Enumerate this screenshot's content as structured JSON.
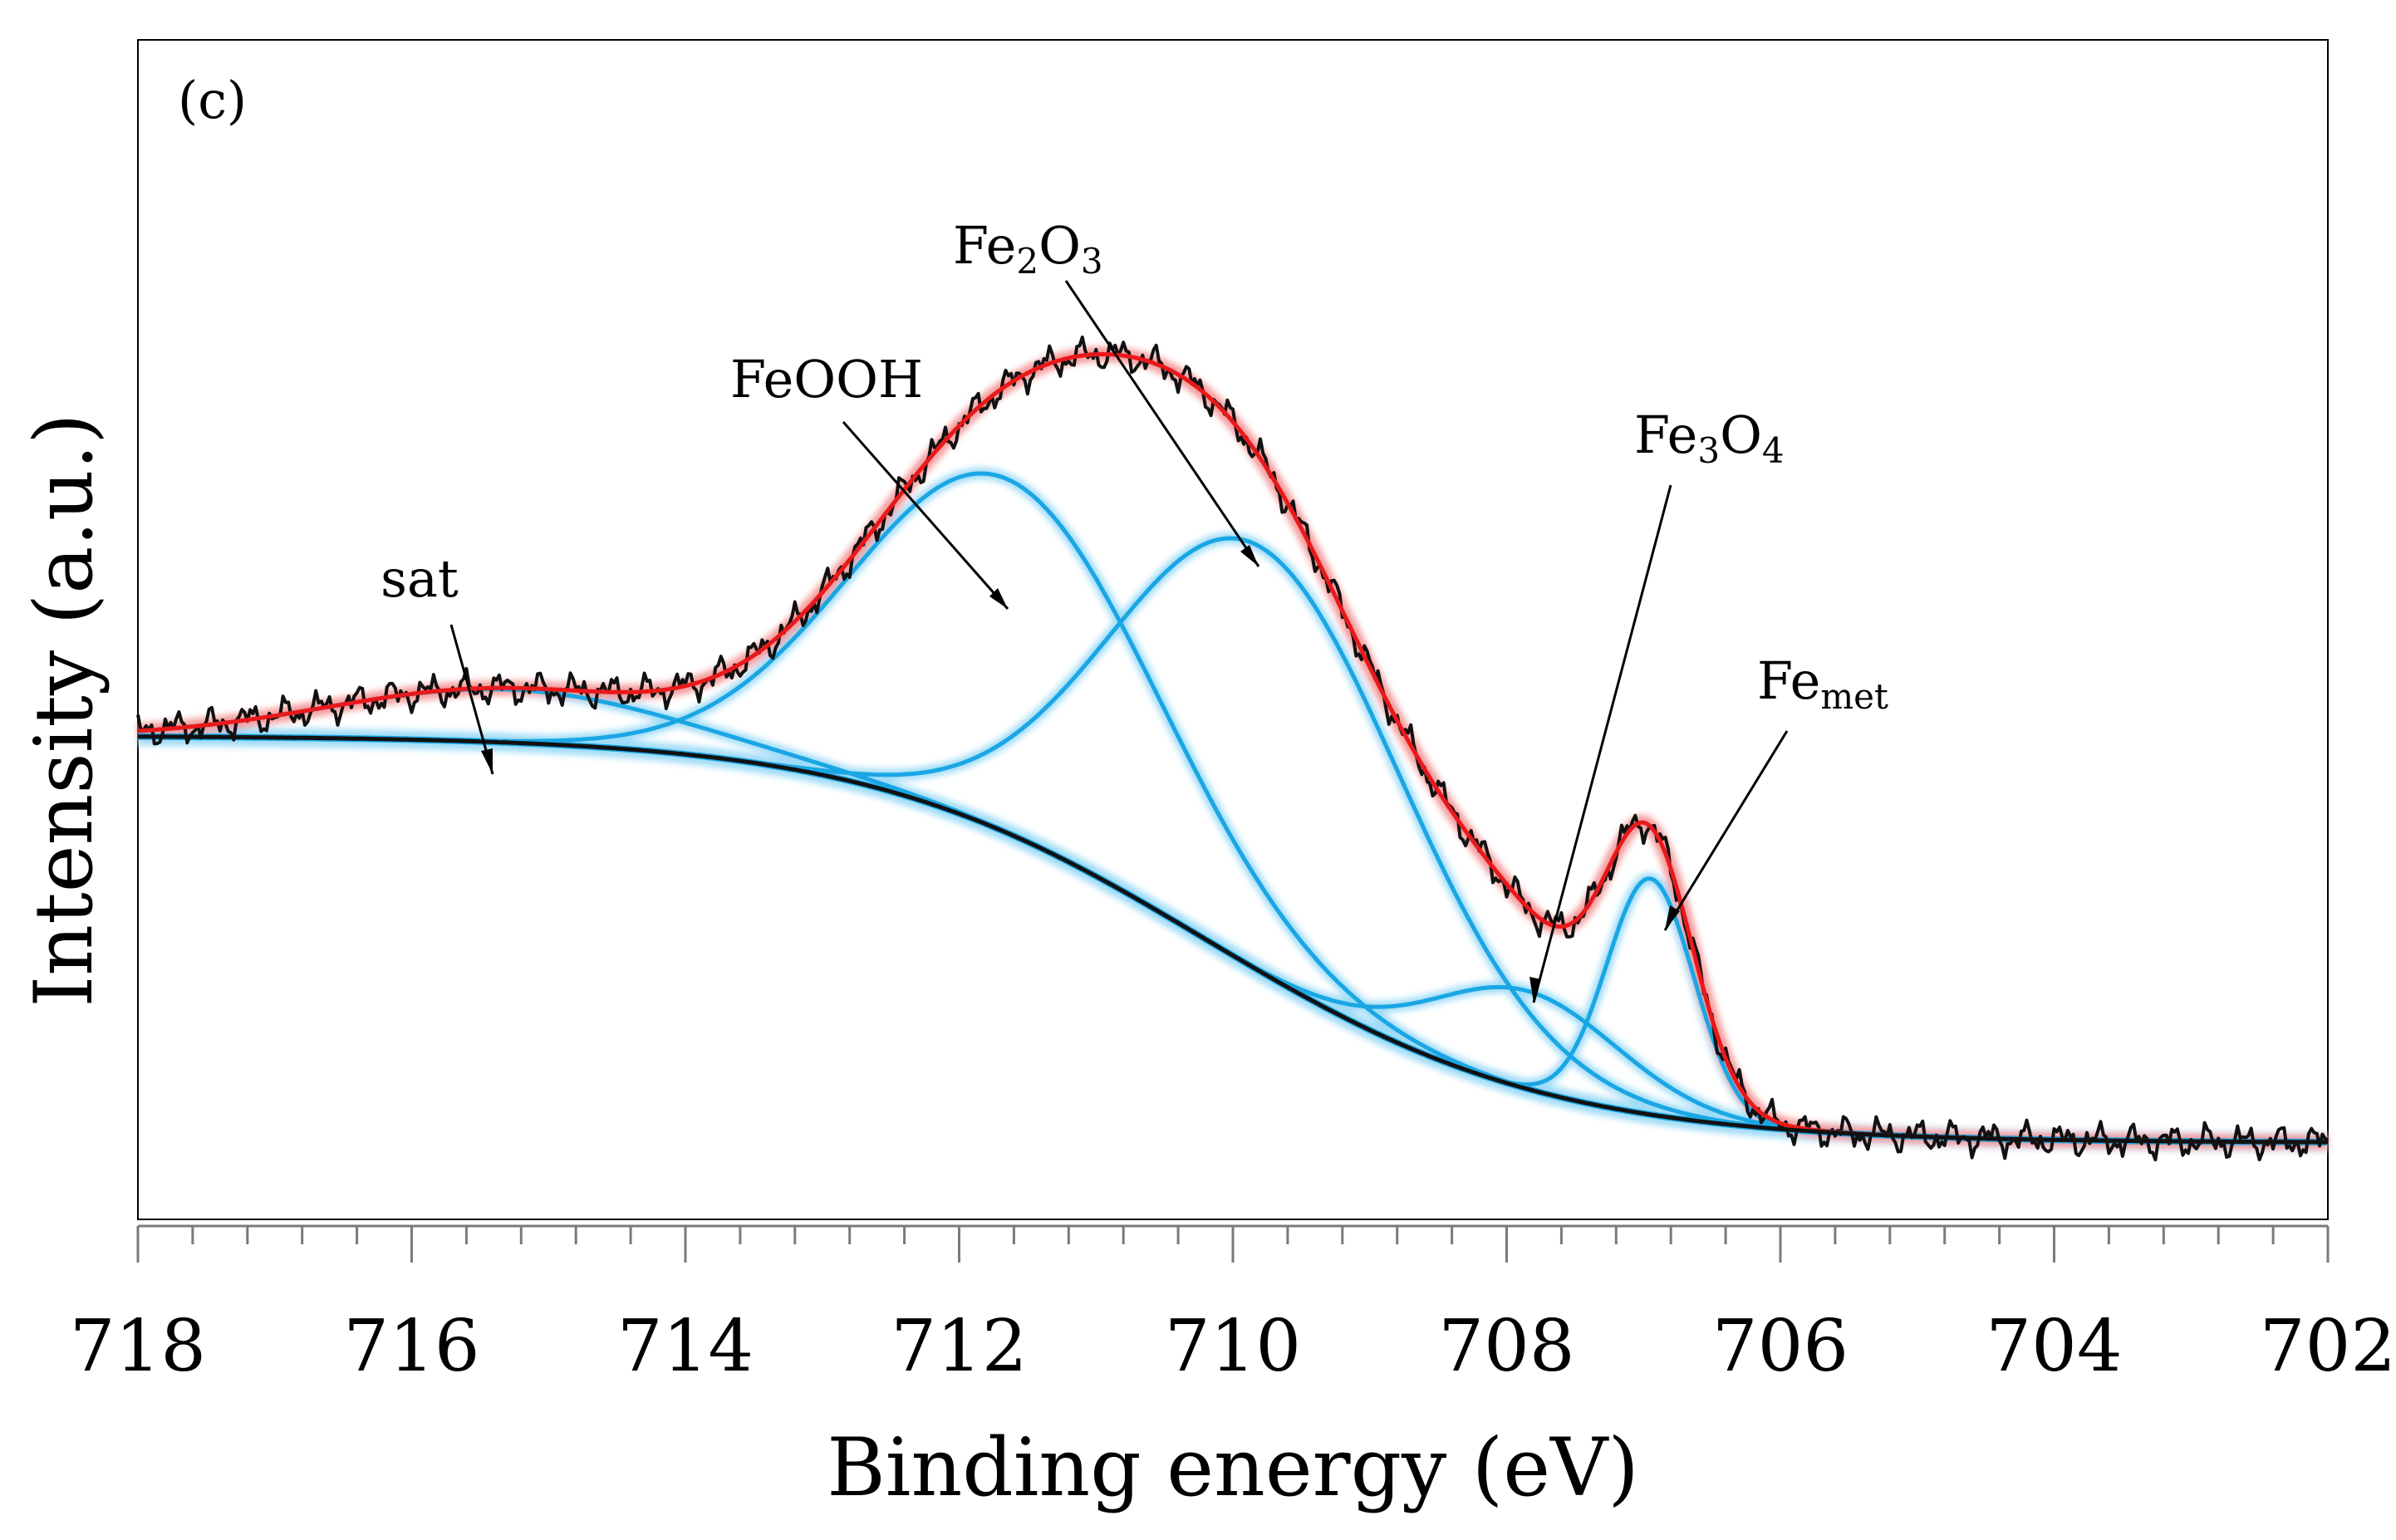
{
  "chart_data": {
    "type": "line",
    "panel_label": "(c)",
    "title": "",
    "xlabel": "Binding energy (eV)",
    "ylabel": "Intensity (a.u.)",
    "xlim": [
      718,
      702
    ],
    "x_reversed": true,
    "ylim": [
      0,
      1
    ],
    "y_ticks_shown": false,
    "x_major_ticks": [
      718,
      716,
      714,
      712,
      710,
      708,
      706,
      704,
      702
    ],
    "x_minor_tick_step": 0.4,
    "grid": false,
    "legend": "none",
    "colors": {
      "experimental": "#111111",
      "envelope": "#e8191b",
      "envelope_glow": "#f59a9a",
      "component": "#1aa6e4",
      "component_glow": "#9fdcf7",
      "background": "#111111"
    },
    "background_curve": {
      "name": "background",
      "formula": "sigmoid",
      "low_be_level": 0.065,
      "high_be_level": 0.41,
      "midpoint_eV": 710.2,
      "width_eV": 1.25
    },
    "series": [
      {
        "name": "sat",
        "label": "sat",
        "center_eV": 715.3,
        "height": 0.045,
        "fwhm_eV": 3.0
      },
      {
        "name": "FeOOH",
        "label": "FeOOH",
        "center_eV": 711.65,
        "height": 0.3,
        "fwhm_eV": 2.6
      },
      {
        "name": "Fe2O3",
        "label_main": "Fe",
        "label_sub1": "2",
        "label_mid": "O",
        "label_sub2": "3",
        "center_eV": 709.8,
        "height": 0.36,
        "fwhm_eV": 2.5
      },
      {
        "name": "Fe3O4",
        "label_main": "Fe",
        "label_sub1": "3",
        "label_mid": "O",
        "label_sub2": "4",
        "center_eV": 707.85,
        "height": 0.083,
        "fwhm_eV": 1.6
      },
      {
        "name": "Femet",
        "label_main": "Fe",
        "label_sub1": "met",
        "center_eV": 706.95,
        "height": 0.2,
        "fwhm_eV": 0.75
      }
    ],
    "envelope": {
      "name": "fit envelope",
      "note": "sum of background and components"
    },
    "experimental": {
      "name": "experimental spectrum",
      "note": "envelope with small noise"
    }
  }
}
